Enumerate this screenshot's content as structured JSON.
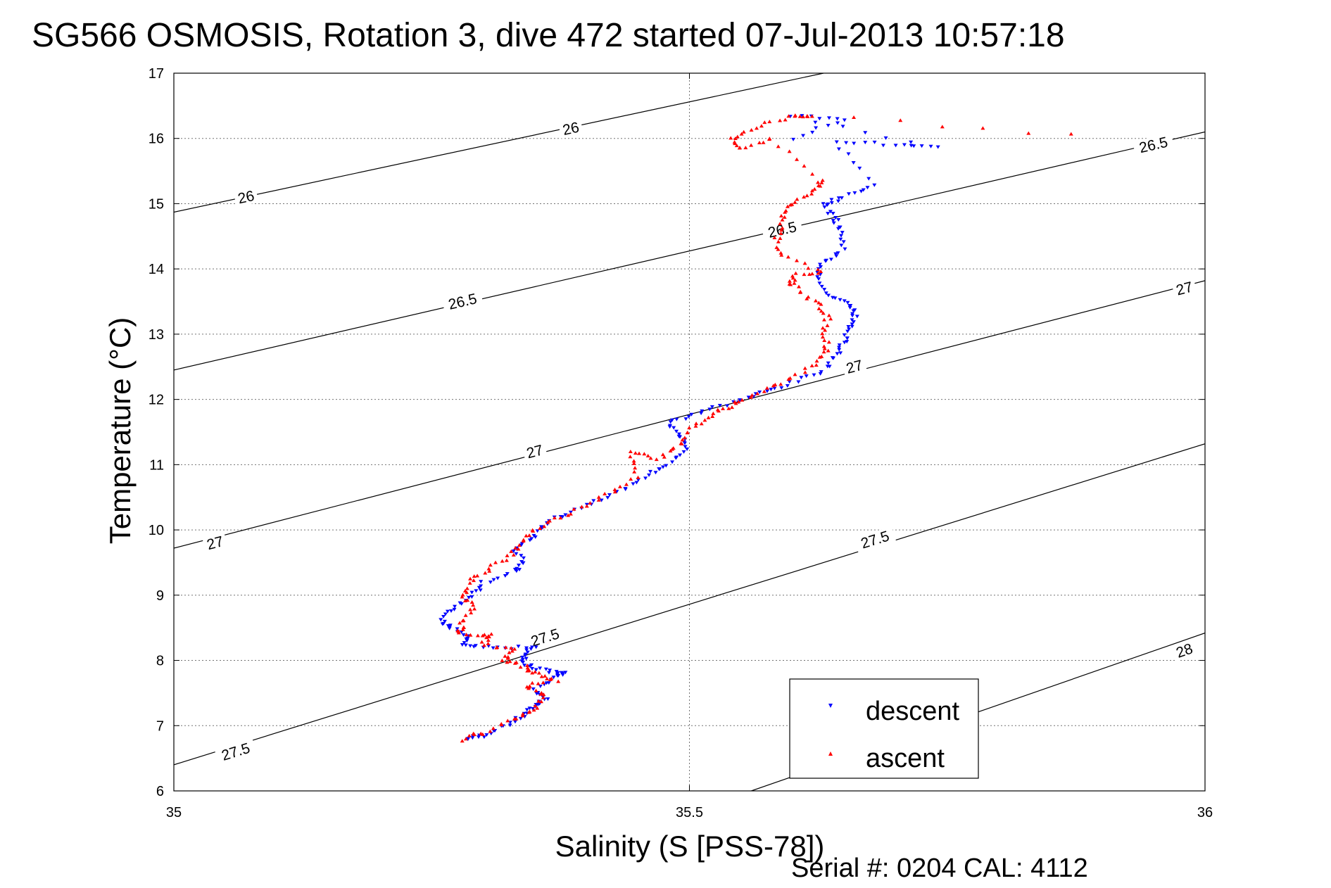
{
  "chart_data": {
    "type": "scatter",
    "title": "SG566 OSMOSIS, Rotation 3, dive 472 started 07-Jul-2013 10:57:18",
    "xlabel": "Salinity (S [PSS-78])",
    "ylabel": "Temperature (°C)",
    "xlim": [
      35,
      36
    ],
    "ylim": [
      6,
      17
    ],
    "xticks": [
      "35",
      "35.5",
      "36"
    ],
    "yticks": [
      "6",
      "7",
      "8",
      "9",
      "10",
      "11",
      "12",
      "13",
      "14",
      "15",
      "16",
      "17"
    ],
    "grid": true,
    "legend_position": "bottom-right",
    "footer": "Serial #: 0204  CAL: 4112",
    "isopycnals": [
      {
        "level": "26",
        "label": "26",
        "points": [
          [
            35,
            14.87
          ],
          [
            35.63,
            17.0
          ]
        ],
        "labels": [
          [
            35.07,
            15.1
          ],
          [
            35.385,
            16.15
          ]
        ]
      },
      {
        "level": "26.5",
        "label": "26.5",
        "points": [
          [
            35,
            12.45
          ],
          [
            36,
            16.1
          ]
        ],
        "labels": [
          [
            35.28,
            13.5
          ],
          [
            35.59,
            14.6
          ],
          [
            35.95,
            15.9
          ]
        ]
      },
      {
        "level": "27",
        "label": "27",
        "points": [
          [
            35,
            9.72
          ],
          [
            36,
            13.82
          ]
        ],
        "labels": [
          [
            35.04,
            9.8
          ],
          [
            35.35,
            11.2
          ],
          [
            35.66,
            12.5
          ],
          [
            35.98,
            13.7
          ]
        ]
      },
      {
        "level": "27.5",
        "label": "27.5",
        "points": [
          [
            35,
            6.4
          ],
          [
            36,
            11.32
          ]
        ],
        "labels": [
          [
            35.06,
            6.6
          ],
          [
            35.36,
            8.35
          ],
          [
            35.68,
            9.85
          ]
        ]
      },
      {
        "level": "28",
        "label": "28",
        "points": [
          [
            35.56,
            6.0
          ],
          [
            36,
            8.42
          ]
        ],
        "labels": [
          [
            35.98,
            8.15
          ]
        ]
      }
    ],
    "series": [
      {
        "name": "descent",
        "color": "#0000ff",
        "marker": "triangle-down",
        "points": [
          [
            35.285,
            6.8
          ],
          [
            35.3,
            6.85
          ],
          [
            35.32,
            7.0
          ],
          [
            35.34,
            7.15
          ],
          [
            35.35,
            7.3
          ],
          [
            35.36,
            7.42
          ],
          [
            35.35,
            7.55
          ],
          [
            35.37,
            7.75
          ],
          [
            35.38,
            7.8
          ],
          [
            35.36,
            7.85
          ],
          [
            35.34,
            7.95
          ],
          [
            35.34,
            8.1
          ],
          [
            35.35,
            8.2
          ],
          [
            35.31,
            8.2
          ],
          [
            35.28,
            8.22
          ],
          [
            35.285,
            8.35
          ],
          [
            35.27,
            8.5
          ],
          [
            35.26,
            8.6
          ],
          [
            35.27,
            8.8
          ],
          [
            35.29,
            9.0
          ],
          [
            35.3,
            9.2
          ],
          [
            35.33,
            9.35
          ],
          [
            35.34,
            9.5
          ],
          [
            35.33,
            9.7
          ],
          [
            35.35,
            9.9
          ],
          [
            35.36,
            10.1
          ],
          [
            35.38,
            10.25
          ],
          [
            35.41,
            10.45
          ],
          [
            35.44,
            10.65
          ],
          [
            35.46,
            10.85
          ],
          [
            35.48,
            11.0
          ],
          [
            35.5,
            11.25
          ],
          [
            35.49,
            11.45
          ],
          [
            35.48,
            11.65
          ],
          [
            35.51,
            11.8
          ],
          [
            35.54,
            11.95
          ],
          [
            35.57,
            12.1
          ],
          [
            35.6,
            12.25
          ],
          [
            35.63,
            12.45
          ],
          [
            35.645,
            12.7
          ],
          [
            35.65,
            12.9
          ],
          [
            35.655,
            13.1
          ],
          [
            35.66,
            13.3
          ],
          [
            35.655,
            13.45
          ],
          [
            35.635,
            13.6
          ],
          [
            35.625,
            13.9
          ],
          [
            35.63,
            14.1
          ],
          [
            35.65,
            14.3
          ],
          [
            35.645,
            14.6
          ],
          [
            35.64,
            14.8
          ],
          [
            35.63,
            15.0
          ],
          [
            35.65,
            15.1
          ],
          [
            35.68,
            15.3
          ],
          [
            35.64,
            15.97
          ],
          [
            35.7,
            15.9
          ],
          [
            35.74,
            15.85
          ],
          [
            35.6,
            16.35
          ],
          [
            35.65,
            16.3
          ],
          [
            35.6,
            16.0
          ]
        ]
      },
      {
        "name": "ascent",
        "color": "#ff0000",
        "marker": "triangle-up",
        "points": [
          [
            35.28,
            6.78
          ],
          [
            35.3,
            6.9
          ],
          [
            35.33,
            7.1
          ],
          [
            35.35,
            7.25
          ],
          [
            35.36,
            7.45
          ],
          [
            35.34,
            7.6
          ],
          [
            35.37,
            7.7
          ],
          [
            35.35,
            7.8
          ],
          [
            35.34,
            7.9
          ],
          [
            35.32,
            8.0
          ],
          [
            35.33,
            8.15
          ],
          [
            35.3,
            8.25
          ],
          [
            35.31,
            8.4
          ],
          [
            35.275,
            8.4
          ],
          [
            35.28,
            8.55
          ],
          [
            35.29,
            8.8
          ],
          [
            35.28,
            9.0
          ],
          [
            35.29,
            9.25
          ],
          [
            35.31,
            9.45
          ],
          [
            35.33,
            9.65
          ],
          [
            35.34,
            9.9
          ],
          [
            35.36,
            10.1
          ],
          [
            35.39,
            10.3
          ],
          [
            35.42,
            10.55
          ],
          [
            35.45,
            10.8
          ],
          [
            35.44,
            11.2
          ],
          [
            35.47,
            11.1
          ],
          [
            35.49,
            11.3
          ],
          [
            35.5,
            11.55
          ],
          [
            35.52,
            11.75
          ],
          [
            35.54,
            11.9
          ],
          [
            35.56,
            12.05
          ],
          [
            35.59,
            12.25
          ],
          [
            35.62,
            12.5
          ],
          [
            35.635,
            12.75
          ],
          [
            35.63,
            13.0
          ],
          [
            35.635,
            13.3
          ],
          [
            35.62,
            13.5
          ],
          [
            35.6,
            13.75
          ],
          [
            35.6,
            13.9
          ],
          [
            35.63,
            13.95
          ],
          [
            35.59,
            14.2
          ],
          [
            35.585,
            14.5
          ],
          [
            35.59,
            14.8
          ],
          [
            35.6,
            15.0
          ],
          [
            35.62,
            15.2
          ],
          [
            35.63,
            15.35
          ],
          [
            35.58,
            16.0
          ],
          [
            35.55,
            15.85
          ],
          [
            35.54,
            16.0
          ],
          [
            35.57,
            16.2
          ],
          [
            35.6,
            16.35
          ],
          [
            35.62,
            16.35
          ],
          [
            35.87,
            16.05
          ]
        ]
      }
    ]
  }
}
